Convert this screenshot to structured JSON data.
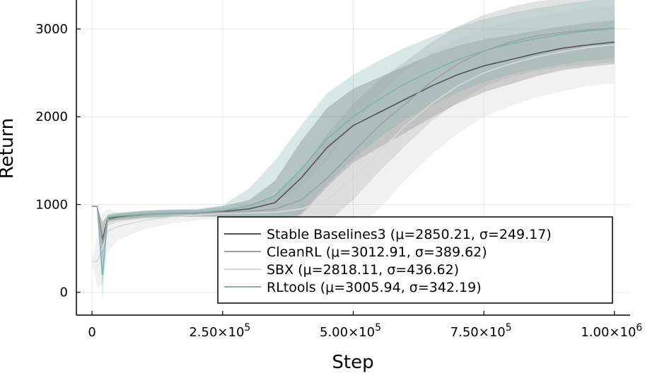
{
  "chart_data": {
    "type": "line",
    "title": "",
    "xlabel": "Step",
    "ylabel": "Return",
    "xlim": [
      -30000,
      1030000
    ],
    "ylim": [
      -260,
      3330
    ],
    "grid": true,
    "legend_position": "bottom-right",
    "x_ticks": [
      {
        "value": 0,
        "mant": "0",
        "exp": ""
      },
      {
        "value": 250000,
        "mant": "2.50×10",
        "exp": "5"
      },
      {
        "value": 500000,
        "mant": "5.00×10",
        "exp": "5"
      },
      {
        "value": 750000,
        "mant": "7.50×10",
        "exp": "5"
      },
      {
        "value": 1000000,
        "mant": "1.00×10",
        "exp": "6"
      }
    ],
    "y_ticks": [
      {
        "value": 0,
        "label": "0"
      },
      {
        "value": 1000,
        "label": "1000"
      },
      {
        "value": 2000,
        "label": "2000"
      },
      {
        "value": 3000,
        "label": "3000"
      }
    ],
    "x": [
      0,
      10000,
      20000,
      30000,
      50000,
      100000,
      150000,
      200000,
      250000,
      300000,
      350000,
      400000,
      450000,
      500000,
      550000,
      600000,
      650000,
      700000,
      750000,
      800000,
      850000,
      900000,
      950000,
      1000000
    ],
    "series": [
      {
        "name": "Stable Baselines3 (μ=2850.21, σ=249.17)",
        "color": "#555555",
        "fill": "#555555",
        "values": [
          980,
          980,
          600,
          840,
          860,
          890,
          900,
          900,
          920,
          950,
          1020,
          1300,
          1650,
          1900,
          2050,
          2200,
          2350,
          2480,
          2580,
          2650,
          2720,
          2780,
          2820,
          2850
        ],
        "spread": [
          0,
          0,
          200,
          40,
          40,
          40,
          40,
          40,
          60,
          100,
          250,
          420,
          450,
          420,
          400,
          380,
          360,
          330,
          300,
          280,
          260,
          250,
          250,
          250
        ]
      },
      {
        "name": "CleanRL (μ=3012.91, σ=389.62)",
        "color": "#a0a0a0",
        "fill": "#a0a0a0",
        "values": [
          980,
          980,
          550,
          820,
          850,
          880,
          895,
          900,
          910,
          920,
          950,
          1050,
          1300,
          1600,
          1900,
          2150,
          2400,
          2600,
          2750,
          2850,
          2920,
          2960,
          2990,
          3010
        ],
        "spread": [
          0,
          0,
          250,
          60,
          50,
          40,
          40,
          40,
          50,
          80,
          150,
          350,
          500,
          550,
          520,
          480,
          450,
          430,
          410,
          400,
          395,
          390,
          390,
          390
        ]
      },
      {
        "name": "SBX (μ=2818.11, σ=436.62)",
        "color": "#d8d8d8",
        "fill": "#d0d0d0",
        "values": [
          350,
          350,
          500,
          700,
          750,
          820,
          860,
          880,
          900,
          905,
          910,
          950,
          1050,
          1300,
          1600,
          1900,
          2150,
          2350,
          2500,
          2600,
          2680,
          2740,
          2790,
          2820
        ],
        "spread": [
          0,
          300,
          400,
          250,
          150,
          100,
          80,
          60,
          60,
          80,
          120,
          250,
          450,
          600,
          650,
          620,
          580,
          540,
          500,
          480,
          460,
          450,
          440,
          440
        ]
      },
      {
        "name": "RLtools (μ=3005.94, σ=342.19)",
        "color": "#7fb3b0",
        "fill": "#7fb3b0",
        "values": [
          980,
          980,
          200,
          850,
          870,
          890,
          905,
          910,
          930,
          980,
          1100,
          1400,
          1750,
          2000,
          2200,
          2380,
          2520,
          2650,
          2750,
          2830,
          2890,
          2940,
          2980,
          3005
        ],
        "spread": [
          0,
          0,
          300,
          40,
          40,
          40,
          40,
          40,
          60,
          200,
          400,
          500,
          520,
          480,
          440,
          410,
          390,
          370,
          360,
          350,
          345,
          342,
          342,
          342
        ]
      }
    ]
  }
}
